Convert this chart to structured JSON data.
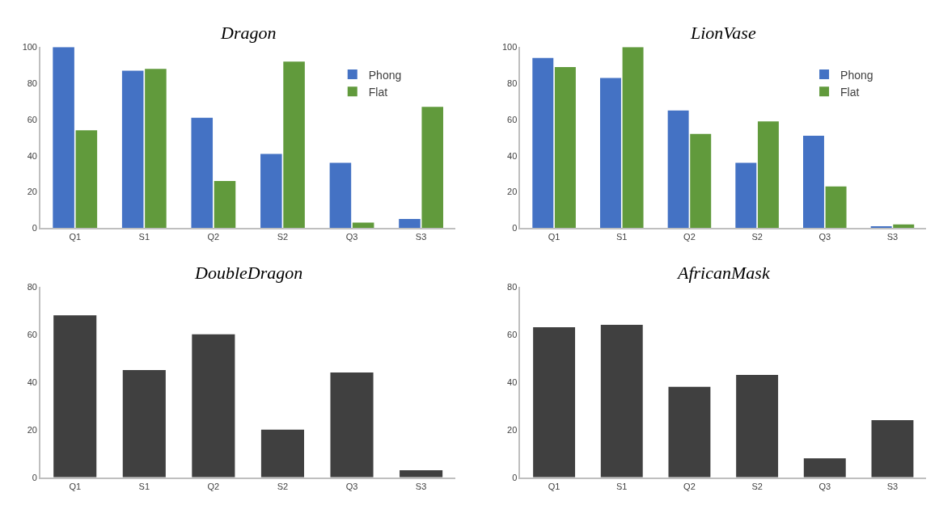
{
  "chart_data": [
    {
      "type": "bar",
      "title": "Dragon",
      "categories": [
        "Q1",
        "S1",
        "Q2",
        "S2",
        "Q3",
        "S3"
      ],
      "ylim": [
        0,
        100
      ],
      "yticks": [
        0,
        20,
        40,
        60,
        80,
        100
      ],
      "grid": false,
      "legend": "top right",
      "series": [
        {
          "name": "Phong",
          "color": "#4472c4",
          "values": [
            100,
            87,
            61,
            41,
            36,
            5
          ]
        },
        {
          "name": "Flat",
          "color": "#619a3c",
          "values": [
            54,
            88,
            26,
            92,
            3,
            67
          ]
        }
      ]
    },
    {
      "type": "bar",
      "title": "LionVase",
      "categories": [
        "Q1",
        "S1",
        "Q2",
        "S2",
        "Q3",
        "S3"
      ],
      "ylim": [
        0,
        100
      ],
      "yticks": [
        0,
        20,
        40,
        60,
        80,
        100
      ],
      "grid": false,
      "legend": "top right",
      "series": [
        {
          "name": "Phong",
          "color": "#4472c4",
          "values": [
            94,
            83,
            65,
            36,
            51,
            1
          ]
        },
        {
          "name": "Flat",
          "color": "#619a3c",
          "values": [
            89,
            100,
            52,
            59,
            23,
            2
          ]
        }
      ]
    },
    {
      "type": "bar",
      "title": "DoubleDragon",
      "categories": [
        "Q1",
        "S1",
        "Q2",
        "S2",
        "Q3",
        "S3"
      ],
      "ylim": [
        0,
        80
      ],
      "yticks": [
        0,
        20,
        40,
        60,
        80
      ],
      "grid": false,
      "series": [
        {
          "color": "#404040",
          "values": [
            68,
            45,
            60,
            20,
            44,
            3
          ]
        }
      ]
    },
    {
      "type": "bar",
      "title": "AfricanMask",
      "categories": [
        "Q1",
        "S1",
        "Q2",
        "S2",
        "Q3",
        "S3"
      ],
      "ylim": [
        0,
        80
      ],
      "yticks": [
        0,
        20,
        40,
        60,
        80
      ],
      "grid": false,
      "series": [
        {
          "color": "#404040",
          "values": [
            63,
            64,
            38,
            43,
            8,
            24
          ]
        }
      ]
    }
  ]
}
